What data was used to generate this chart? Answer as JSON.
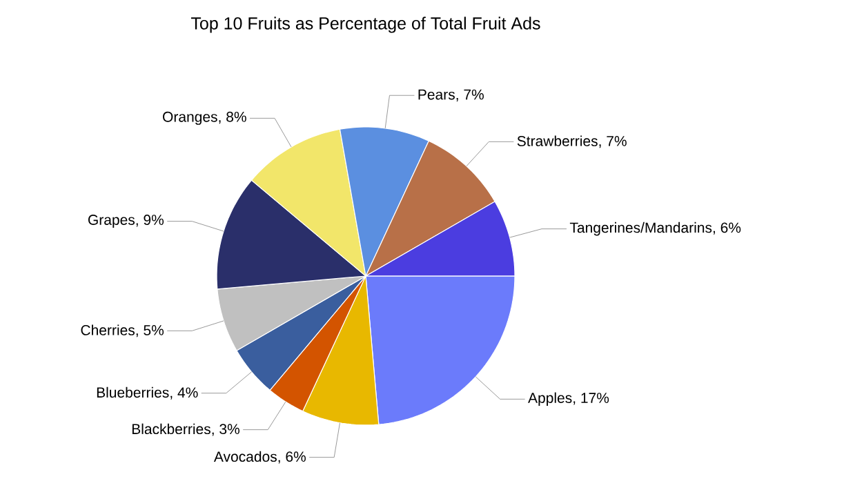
{
  "chart_data": {
    "type": "pie",
    "title": "Top 10 Fruits as Percentage of Total Fruit Ads",
    "categories": [
      "Apples",
      "Avocados",
      "Blackberries",
      "Blueberries",
      "Cherries",
      "Grapes",
      "Oranges",
      "Pears",
      "Strawberries",
      "Tangerines/Mandarins"
    ],
    "values": [
      17,
      6,
      3,
      4,
      5,
      9,
      8,
      7,
      7,
      6
    ],
    "value_labels": [
      ", 17%",
      ", 6%",
      ", 3%",
      ", 4%",
      ", 5%",
      ", 9%",
      ", 8%",
      ", 7%",
      ", 7%",
      ", 6%"
    ],
    "colors": [
      "#6b7bfb",
      "#e8b800",
      "#d35400",
      "#3a5e9e",
      "#c0c0c0",
      "#2a2f6a",
      "#f2e66a",
      "#5b8fe0",
      "#b87048",
      "#4b3de0"
    ]
  }
}
